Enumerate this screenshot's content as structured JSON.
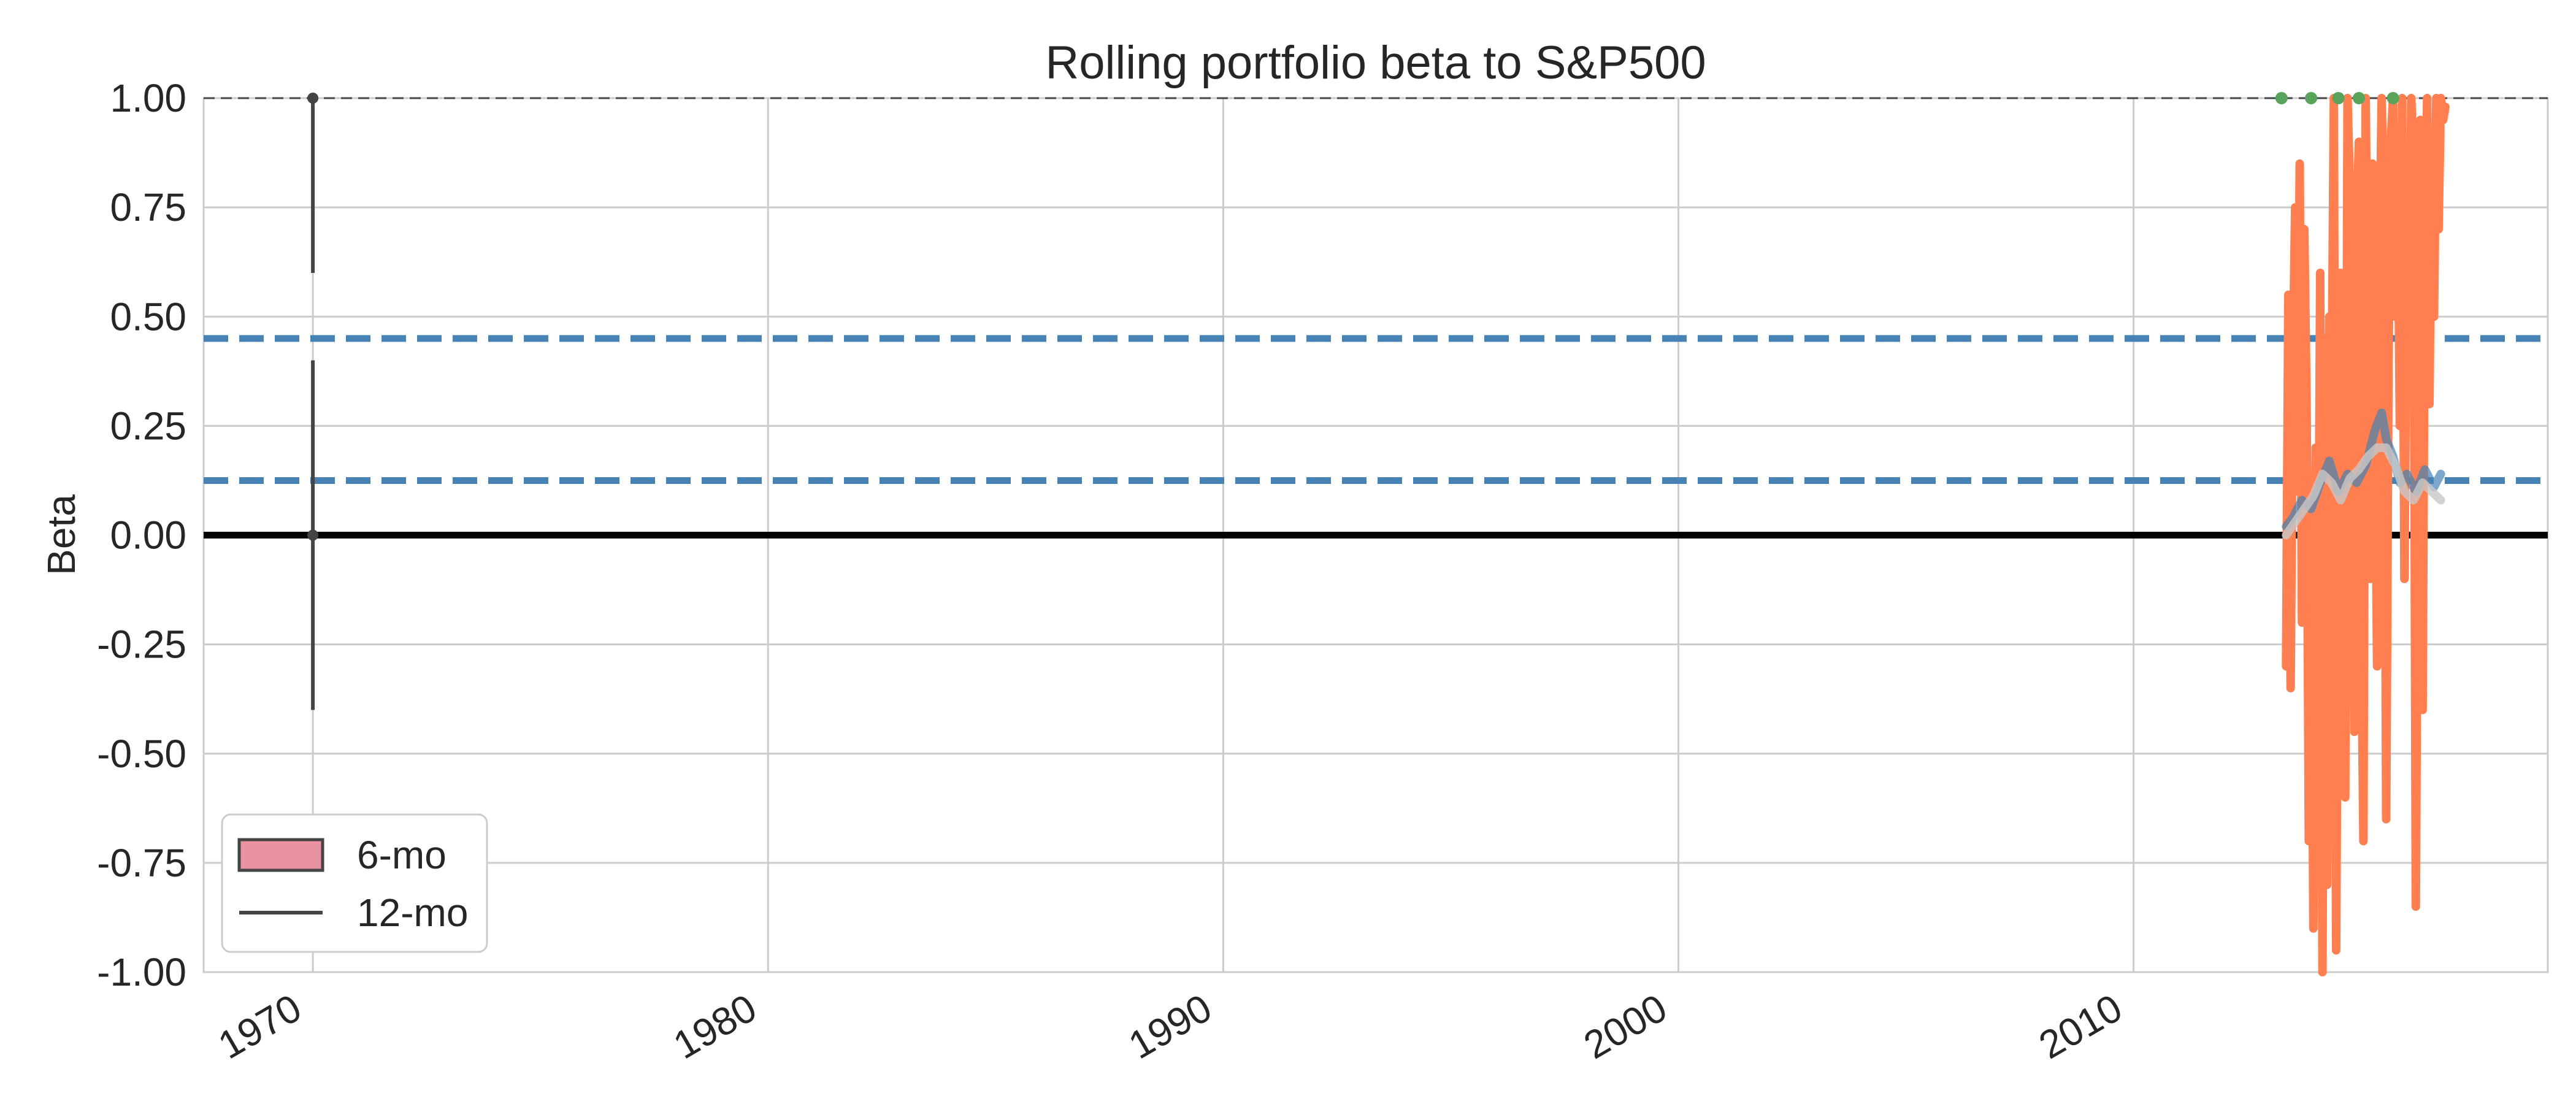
{
  "chart_data": {
    "type": "line",
    "title": "Rolling portfolio beta to S&P500",
    "xlabel": "",
    "ylabel": "Beta",
    "xlim": [
      1967.6,
      2019.1
    ],
    "ylim": [
      -1.0,
      1.0
    ],
    "x_ticks": [
      1970,
      1980,
      1990,
      2000,
      2010
    ],
    "x_tick_labels": [
      "1970",
      "1980",
      "1990",
      "2000",
      "2010"
    ],
    "y_ticks": [
      1.0,
      0.75,
      0.5,
      0.25,
      0.0,
      -0.25,
      -0.5,
      -0.75,
      -1.0
    ],
    "y_tick_labels": [
      "1.00",
      "0.75",
      "0.50",
      "0.25",
      "0.00",
      "-0.25",
      "-0.50",
      "-0.75",
      "-1.00"
    ],
    "grid": true,
    "legend": {
      "position": "lower-left",
      "entries": [
        {
          "label": "6-mo",
          "marker": "patch",
          "color": "#e8939f"
        },
        {
          "label": "12-mo",
          "marker": "line",
          "color": "#444444"
        }
      ]
    },
    "reference_lines": [
      {
        "y": 1.0,
        "style": "dashed",
        "color": "#444444"
      },
      {
        "y": 0.45,
        "style": "dashed",
        "color": "#4682b4"
      },
      {
        "y": 0.125,
        "style": "dashed",
        "color": "#4682b4"
      },
      {
        "y": 0.0,
        "style": "solid",
        "color": "#000000"
      }
    ],
    "error_bar": {
      "x": 1970.0,
      "segments": [
        [
          -0.4,
          0.4
        ],
        [
          0.6,
          1.0
        ]
      ],
      "points": [
        0.0,
        1.0
      ],
      "color": "#444444"
    },
    "series": [
      {
        "color": "#ff7f50",
        "x": [
          2013.35,
          2013.4,
          2013.45,
          2013.5,
          2013.55,
          2013.6,
          2013.65,
          2013.7,
          2013.75,
          2013.8,
          2013.85,
          2013.9,
          2013.95,
          2014.0,
          2014.05,
          2014.1,
          2014.15,
          2014.2,
          2014.25,
          2014.3,
          2014.35,
          2014.4,
          2014.45,
          2014.5,
          2014.55,
          2014.6,
          2014.65,
          2014.7,
          2014.75,
          2014.8,
          2014.85,
          2014.9,
          2014.95,
          2015.0,
          2015.05,
          2015.1,
          2015.15,
          2015.2,
          2015.25,
          2015.3,
          2015.35,
          2015.4,
          2015.45,
          2015.5,
          2015.55,
          2015.6,
          2015.65,
          2015.7,
          2015.75,
          2015.8,
          2015.85,
          2015.9,
          2015.95,
          2016.0,
          2016.05,
          2016.1,
          2016.15,
          2016.2,
          2016.25,
          2016.3,
          2016.35,
          2016.4,
          2016.45,
          2016.5,
          2016.55,
          2016.6,
          2016.65,
          2016.7,
          2016.75,
          2016.8,
          2016.85
        ],
        "values": [
          -0.3,
          0.55,
          -0.35,
          0.4,
          0.75,
          0.1,
          0.85,
          -0.2,
          0.7,
          0.3,
          -0.7,
          0.05,
          -0.9,
          0.2,
          -0.4,
          0.6,
          -1.0,
          0.45,
          -0.8,
          0.5,
          0.3,
          1.0,
          -0.95,
          0.1,
          0.6,
          0.3,
          -0.6,
          1.0,
          0.8,
          0.2,
          -0.45,
          0.7,
          0.9,
          -0.2,
          -0.7,
          1.0,
          0.4,
          -0.1,
          0.85,
          0.3,
          -0.3,
          0.6,
          1.0,
          0.75,
          -0.65,
          0.4,
          0.9,
          1.0,
          0.5,
          0.8,
          0.25,
          1.0,
          -0.1,
          0.6,
          0.3,
          1.0,
          0.85,
          -0.85,
          0.2,
          0.95,
          -0.4,
          0.7,
          1.0,
          0.3,
          0.9,
          0.5,
          1.0,
          0.7,
          1.0,
          0.95,
          0.98
        ]
      },
      {
        "color": "#4682b4",
        "x": [
          2013.35,
          2013.5,
          2013.7,
          2013.9,
          2014.1,
          2014.3,
          2014.5,
          2014.7,
          2014.9,
          2015.1,
          2015.3,
          2015.45,
          2015.55,
          2015.7,
          2015.85,
          2016.0,
          2016.2,
          2016.4,
          2016.6,
          2016.75
        ],
        "values": [
          0.02,
          0.04,
          0.08,
          0.06,
          0.12,
          0.17,
          0.1,
          0.14,
          0.12,
          0.16,
          0.24,
          0.28,
          0.22,
          0.18,
          0.12,
          0.14,
          0.1,
          0.15,
          0.11,
          0.14
        ]
      },
      {
        "color": "#c8c8c8",
        "x": [
          2013.35,
          2013.55,
          2013.75,
          2013.95,
          2014.15,
          2014.35,
          2014.55,
          2014.75,
          2014.95,
          2015.15,
          2015.35,
          2015.55,
          2015.75,
          2015.95,
          2016.15,
          2016.35,
          2016.55,
          2016.75
        ],
        "values": [
          0.0,
          0.03,
          0.06,
          0.09,
          0.14,
          0.12,
          0.08,
          0.13,
          0.15,
          0.18,
          0.2,
          0.2,
          0.16,
          0.1,
          0.08,
          0.12,
          0.1,
          0.08
        ]
      },
      {
        "color": "#5aa35a",
        "type": "scatter",
        "x": [
          2013.25,
          2013.9,
          2014.5,
          2014.95,
          2015.7
        ],
        "values": [
          1.0,
          1.0,
          1.0,
          1.0,
          1.0
        ]
      }
    ]
  }
}
